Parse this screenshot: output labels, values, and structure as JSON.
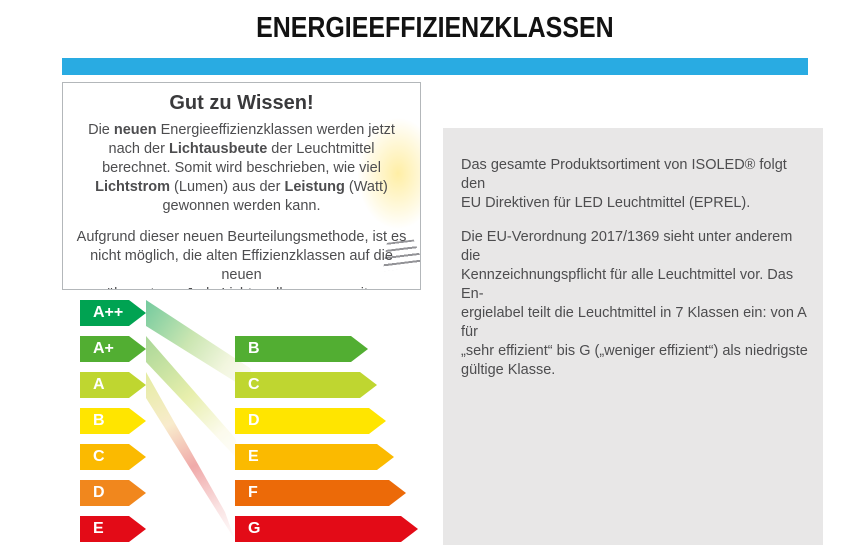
{
  "title": "ENERGIEEFFIZIENZKLASSEN",
  "colors": {
    "accent_blue": "#29ABE2",
    "panel_gray": "#E8E7E7",
    "text_gray": "#4D4D4F"
  },
  "info_box": {
    "heading": "Gut zu Wissen!",
    "paragraph1": [
      {
        "text": "Die ",
        "bold": false
      },
      {
        "text": "neuen",
        "bold": true
      },
      {
        "text": " Energieeffizienzklassen werden jetzt nach der ",
        "bold": false
      },
      {
        "text": "Lichtausbeute",
        "bold": true
      },
      {
        "text": " der Leuchtmittel berechnet. Somit wird beschrieben, wie viel ",
        "bold": false
      },
      {
        "text": "Lichtstrom",
        "bold": true
      },
      {
        "text": " (Lumen) aus der ",
        "bold": false
      },
      {
        "text": "Leistung",
        "bold": true
      },
      {
        "text": " (Watt) gewonnen werden kann.",
        "bold": false
      }
    ],
    "paragraph2": "Aufgrund dieser neuen Beurteilungsmethode, ist es\nnicht möglich, die alten Effizienzklassen auf die neuen\nzu übersetzen. Jede Lichtquelle muss somit neu berech-\nnet werden."
  },
  "product_box": {
    "paragraph1": "Das gesamte Produktsortiment von ISOLED® folgt den\nEU Direktiven für LED Leuchtmittel (EPREL).",
    "paragraph2": "Die EU-Verordnung 2017/1369 sieht unter anderem die\nKennzeichnungspflicht für alle Leuchtmittel vor. Das En-\nergielabel teilt die Leuchtmittel in 7 Klassen ein: von A für\n„sehr effizient“ bis G („weniger effizient“) als niedrigste\ngültige Klasse."
  },
  "energy_scale": {
    "old_classes": [
      {
        "label": "A++",
        "color": "#00A352"
      },
      {
        "label": "A+",
        "color": "#52AE32"
      },
      {
        "label": "A",
        "color": "#BFD630"
      },
      {
        "label": "B",
        "color": "#FFE500"
      },
      {
        "label": "C",
        "color": "#FBBA00"
      },
      {
        "label": "D",
        "color": "#F1871D"
      },
      {
        "label": "E",
        "color": "#E30B17"
      }
    ],
    "new_classes": [
      {
        "label": "B",
        "color": "#52AE32"
      },
      {
        "label": "C",
        "color": "#BFD630"
      },
      {
        "label": "D",
        "color": "#FFE500"
      },
      {
        "label": "E",
        "color": "#FBBA00"
      },
      {
        "label": "F",
        "color": "#EC6A08"
      },
      {
        "label": "G",
        "color": "#E30B17"
      }
    ]
  }
}
